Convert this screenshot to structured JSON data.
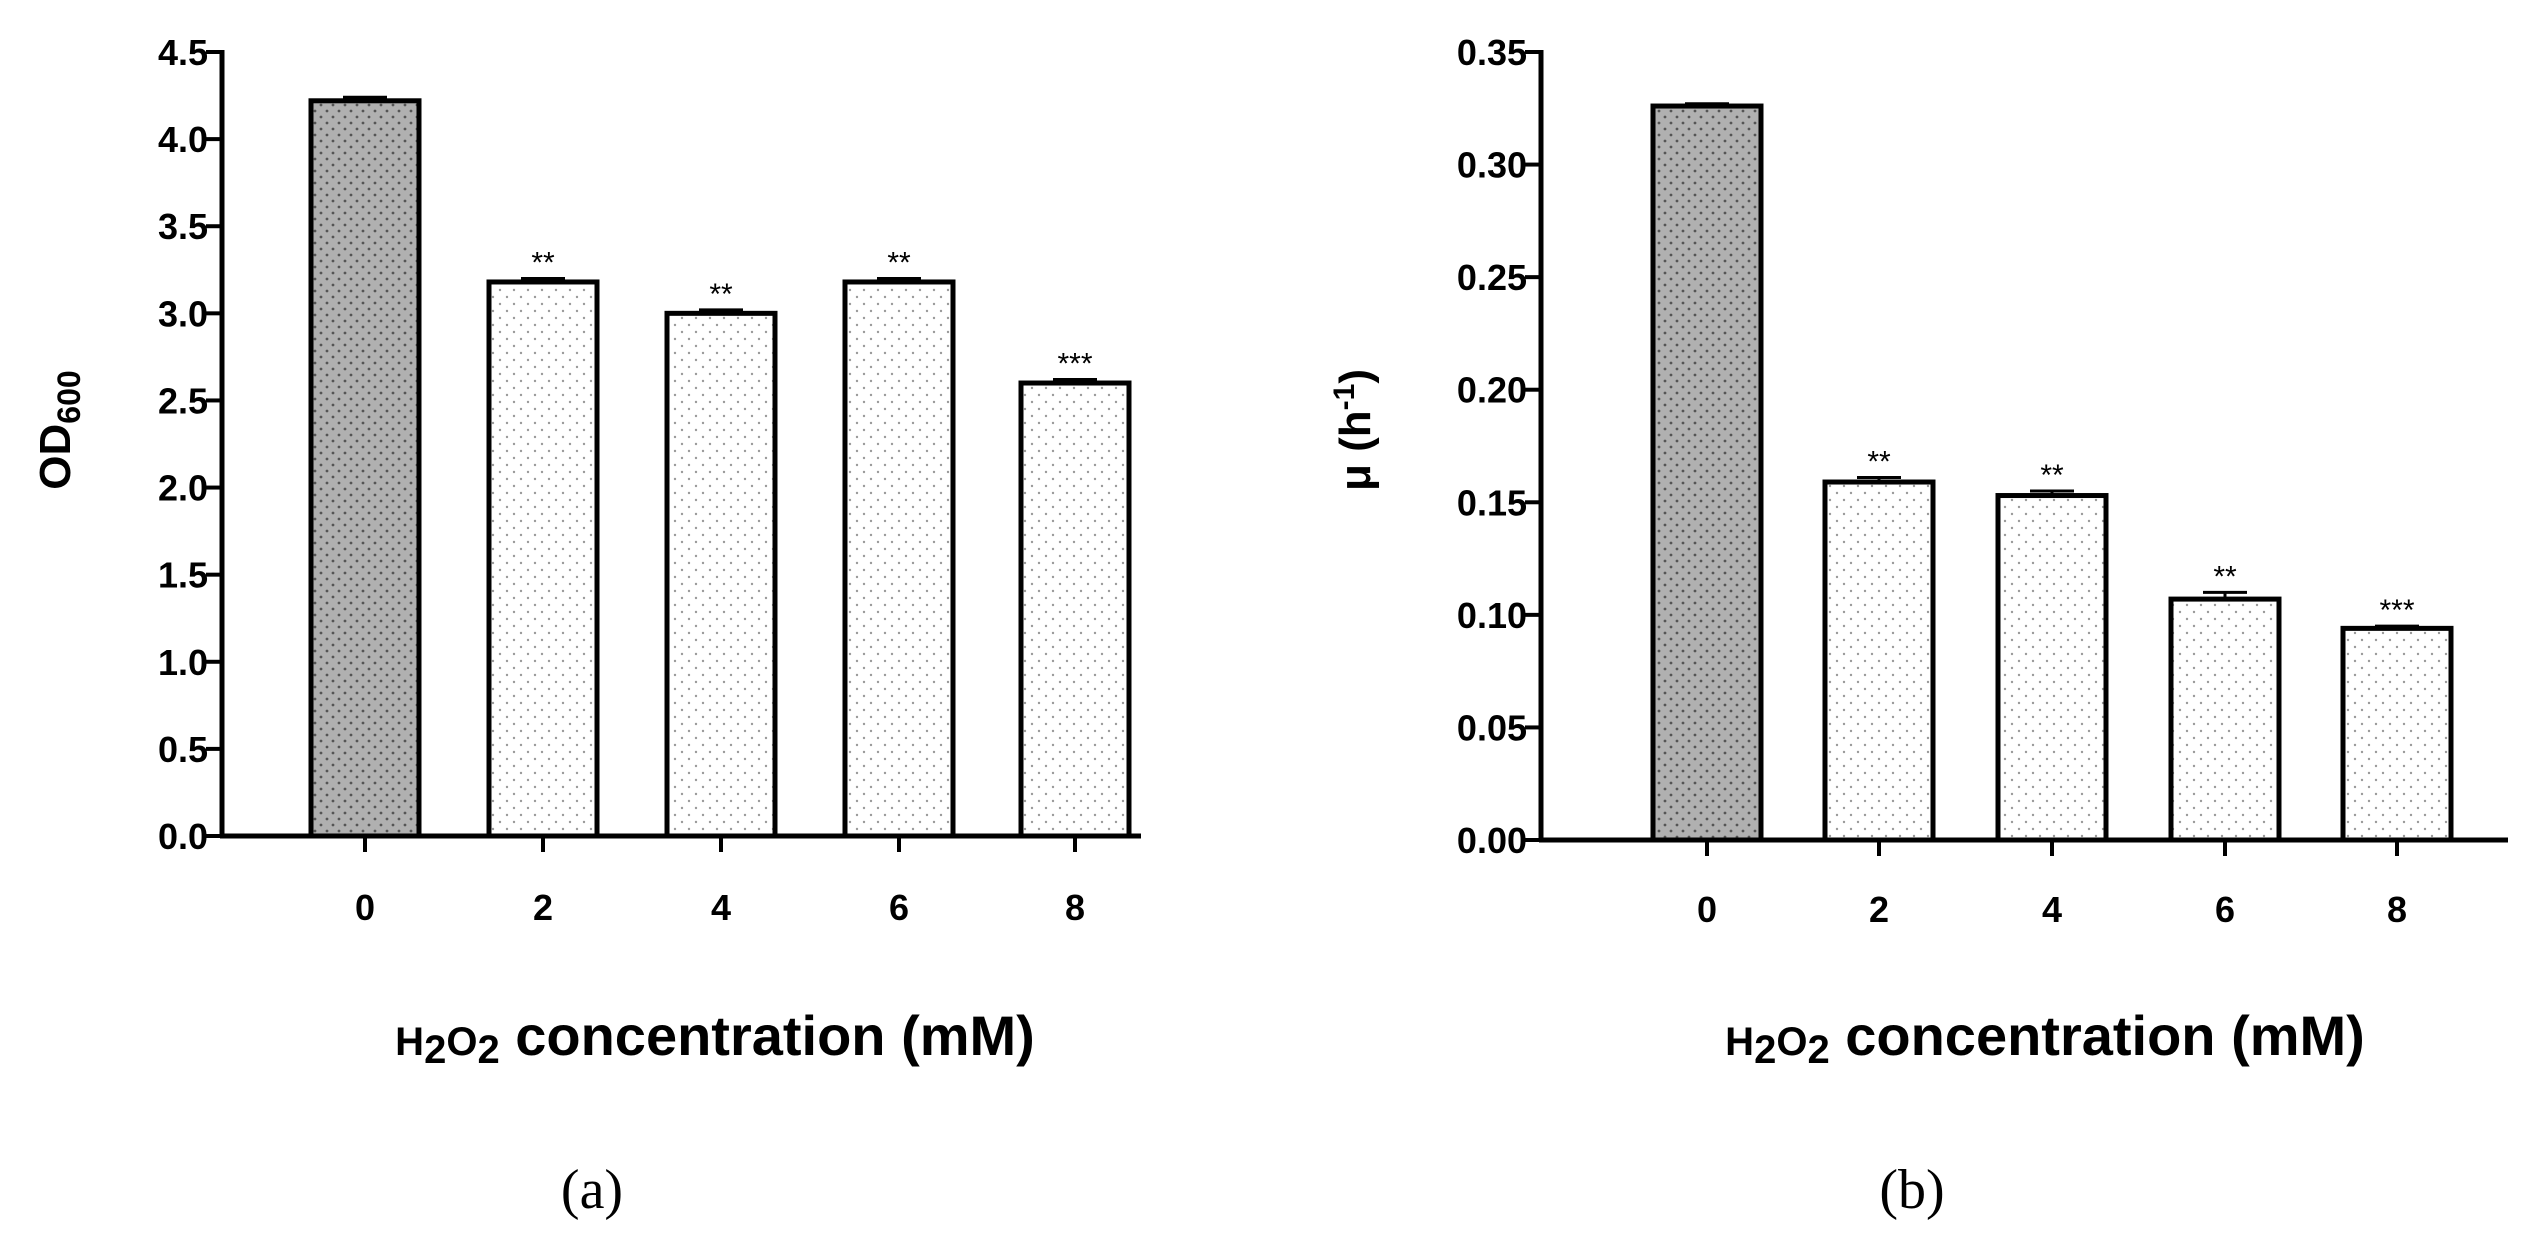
{
  "chart_data": [
    {
      "type": "bar",
      "panel_label": "(a)",
      "categories": [
        "0",
        "2",
        "4",
        "6",
        "8"
      ],
      "values": [
        4.22,
        3.18,
        3.0,
        3.18,
        2.6
      ],
      "errors": [
        0.02,
        0.02,
        0.02,
        0.02,
        0.02
      ],
      "significance": [
        "",
        "**",
        "**",
        "**",
        "***"
      ],
      "ylabel": {
        "main": "OD",
        "sub": "600"
      },
      "xlabel": {
        "h": "H",
        "two1": "2",
        "o": "O",
        "two2": "2",
        "rest": " concentration (mM)"
      },
      "ylim": [
        0,
        4.5
      ],
      "yticks": [
        "0.0",
        "0.5",
        "1.0",
        "1.5",
        "2.0",
        "2.5",
        "3.0",
        "3.5",
        "4.0",
        "4.5"
      ],
      "ytick_values": [
        0,
        0.5,
        1.0,
        1.5,
        2.0,
        2.5,
        3.0,
        3.5,
        4.0,
        4.5
      ],
      "fills": [
        "#b0b0b0",
        "#ffffff",
        "#ffffff",
        "#ffffff",
        "#ffffff"
      ]
    },
    {
      "type": "bar",
      "panel_label": "(b)",
      "categories": [
        "0",
        "2",
        "4",
        "6",
        "8"
      ],
      "values": [
        0.326,
        0.159,
        0.153,
        0.107,
        0.094
      ],
      "errors": [
        0.001,
        0.002,
        0.002,
        0.003,
        0.001
      ],
      "significance": [
        "",
        "**",
        "**",
        "**",
        "***"
      ],
      "ylabel": {
        "main": "μ (h",
        "sup": "-1",
        "close": ")"
      },
      "xlabel": {
        "h": "H",
        "two1": "2",
        "o": "O",
        "two2": "2",
        "rest": " concentration (mM)"
      },
      "ylim": [
        0,
        0.35
      ],
      "yticks": [
        "0.00",
        "0.05",
        "0.10",
        "0.15",
        "0.20",
        "0.25",
        "0.30",
        "0.35"
      ],
      "ytick_values": [
        0,
        0.05,
        0.1,
        0.15,
        0.2,
        0.25,
        0.3,
        0.35
      ],
      "fills": [
        "#b0b0b0",
        "#ffffff",
        "#ffffff",
        "#ffffff",
        "#ffffff"
      ]
    }
  ]
}
